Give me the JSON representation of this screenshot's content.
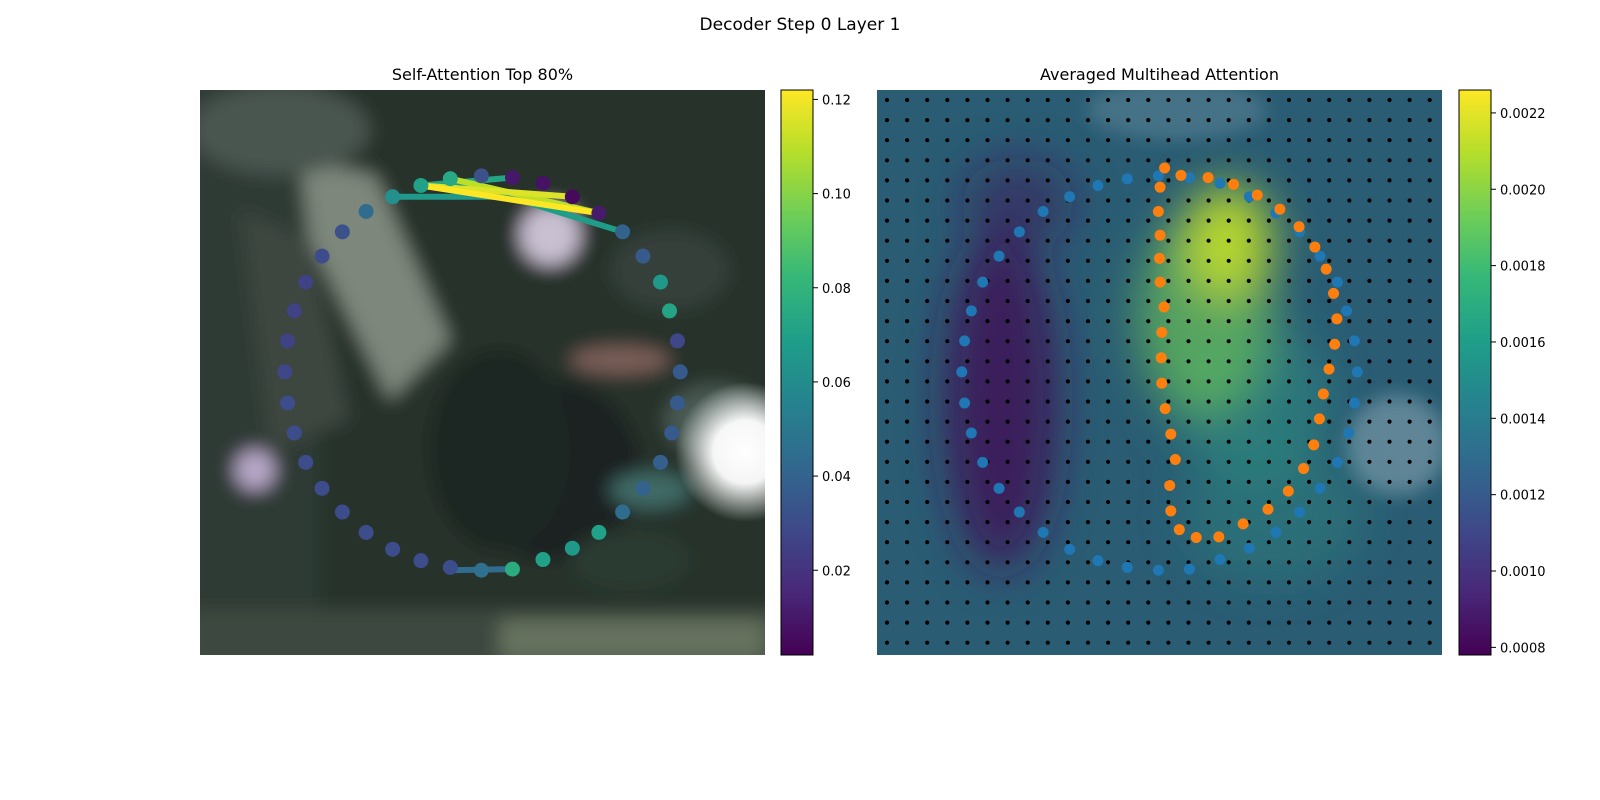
{
  "figure": {
    "suptitle": "Decoder Step 0 Layer 1"
  },
  "colormap": [
    "#440154",
    "#482878",
    "#3e4989",
    "#31688e",
    "#26828e",
    "#1f9e89",
    "#35b779",
    "#6ece58",
    "#b5de2b",
    "#fde725"
  ],
  "chart_data": [
    {
      "type": "scatter",
      "title": "Self-Attention Top 80%",
      "xlim": [
        0,
        1
      ],
      "ylim": [
        0,
        1
      ],
      "grid": false,
      "colorbar": {
        "range": [
          0.002,
          0.122
        ],
        "ticks": [
          0.02,
          0.04,
          0.06,
          0.08,
          0.1,
          0.12
        ],
        "tick_labels": [
          "0.02",
          "0.04",
          "0.06",
          "0.08",
          "0.10",
          "0.12"
        ]
      },
      "attention_points": [
        {
          "x": 0.498,
          "y": 0.848,
          "v": 0.032
        },
        {
          "x": 0.553,
          "y": 0.845,
          "v": 0.01
        },
        {
          "x": 0.607,
          "y": 0.835,
          "v": 0.008
        },
        {
          "x": 0.659,
          "y": 0.811,
          "v": 0.005
        },
        {
          "x": 0.706,
          "y": 0.782,
          "v": 0.011
        },
        {
          "x": 0.748,
          "y": 0.749,
          "v": 0.04
        },
        {
          "x": 0.784,
          "y": 0.706,
          "v": 0.036
        },
        {
          "x": 0.815,
          "y": 0.66,
          "v": 0.066
        },
        {
          "x": 0.831,
          "y": 0.609,
          "v": 0.072
        },
        {
          "x": 0.845,
          "y": 0.556,
          "v": 0.028
        },
        {
          "x": 0.85,
          "y": 0.501,
          "v": 0.036
        },
        {
          "x": 0.845,
          "y": 0.446,
          "v": 0.036
        },
        {
          "x": 0.835,
          "y": 0.393,
          "v": 0.036
        },
        {
          "x": 0.815,
          "y": 0.341,
          "v": 0.038
        },
        {
          "x": 0.784,
          "y": 0.295,
          "v": 0.04
        },
        {
          "x": 0.748,
          "y": 0.253,
          "v": 0.044
        },
        {
          "x": 0.706,
          "y": 0.217,
          "v": 0.07
        },
        {
          "x": 0.659,
          "y": 0.189,
          "v": 0.066
        },
        {
          "x": 0.607,
          "y": 0.169,
          "v": 0.07
        },
        {
          "x": 0.553,
          "y": 0.152,
          "v": 0.076
        },
        {
          "x": 0.498,
          "y": 0.15,
          "v": 0.046
        },
        {
          "x": 0.443,
          "y": 0.155,
          "v": 0.03
        },
        {
          "x": 0.391,
          "y": 0.167,
          "v": 0.03
        },
        {
          "x": 0.341,
          "y": 0.187,
          "v": 0.03
        },
        {
          "x": 0.294,
          "y": 0.217,
          "v": 0.03
        },
        {
          "x": 0.252,
          "y": 0.253,
          "v": 0.03
        },
        {
          "x": 0.216,
          "y": 0.295,
          "v": 0.03
        },
        {
          "x": 0.187,
          "y": 0.341,
          "v": 0.03
        },
        {
          "x": 0.167,
          "y": 0.393,
          "v": 0.03
        },
        {
          "x": 0.155,
          "y": 0.446,
          "v": 0.03
        },
        {
          "x": 0.15,
          "y": 0.501,
          "v": 0.028
        },
        {
          "x": 0.155,
          "y": 0.556,
          "v": 0.026
        },
        {
          "x": 0.167,
          "y": 0.609,
          "v": 0.026
        },
        {
          "x": 0.187,
          "y": 0.66,
          "v": 0.026
        },
        {
          "x": 0.216,
          "y": 0.706,
          "v": 0.03
        },
        {
          "x": 0.252,
          "y": 0.749,
          "v": 0.032
        },
        {
          "x": 0.294,
          "y": 0.785,
          "v": 0.044
        },
        {
          "x": 0.341,
          "y": 0.811,
          "v": 0.062
        },
        {
          "x": 0.391,
          "y": 0.831,
          "v": 0.07
        },
        {
          "x": 0.443,
          "y": 0.843,
          "v": 0.074
        }
      ],
      "attention_edges": [
        {
          "x1": 0.391,
          "y1": 0.831,
          "x2": 0.706,
          "y2": 0.782,
          "v": 0.122
        },
        {
          "x1": 0.391,
          "y1": 0.831,
          "x2": 0.659,
          "y2": 0.811,
          "v": 0.116
        },
        {
          "x1": 0.443,
          "y1": 0.843,
          "x2": 0.706,
          "y2": 0.782,
          "v": 0.11
        },
        {
          "x1": 0.341,
          "y1": 0.811,
          "x2": 0.607,
          "y2": 0.811,
          "v": 0.066
        },
        {
          "x1": 0.443,
          "y1": 0.843,
          "x2": 0.748,
          "y2": 0.749,
          "v": 0.068
        },
        {
          "x1": 0.391,
          "y1": 0.831,
          "x2": 0.553,
          "y2": 0.845,
          "v": 0.072
        },
        {
          "x1": 0.443,
          "y1": 0.15,
          "x2": 0.553,
          "y2": 0.152,
          "v": 0.044
        }
      ]
    },
    {
      "type": "heatmap",
      "title": "Averaged Multihead Attention",
      "xlim": [
        0,
        1
      ],
      "ylim": [
        0,
        1
      ],
      "grid": false,
      "colorbar": {
        "range": [
          0.00078,
          0.00226
        ],
        "ticks": [
          0.0008,
          0.001,
          0.0012,
          0.0014,
          0.0016,
          0.0018,
          0.002,
          0.0022
        ],
        "tick_labels": [
          "0.0008",
          "0.0010",
          "0.0012",
          "0.0014",
          "0.0016",
          "0.0018",
          "0.0020",
          "0.0022"
        ]
      },
      "hotspots": [
        {
          "x": 0.62,
          "y": 0.73,
          "sx": 0.08,
          "sy": 0.1,
          "a": 1.0
        },
        {
          "x": 0.58,
          "y": 0.6,
          "sx": 0.12,
          "sy": 0.18,
          "a": 0.75
        },
        {
          "x": 0.66,
          "y": 0.45,
          "sx": 0.14,
          "sy": 0.14,
          "a": 0.45
        },
        {
          "x": 0.7,
          "y": 0.25,
          "sx": 0.16,
          "sy": 0.12,
          "a": 0.3
        }
      ],
      "coldspots": [
        {
          "x": 0.22,
          "y": 0.45,
          "sx": 0.1,
          "sy": 0.3,
          "a": 0.9
        },
        {
          "x": 0.25,
          "y": 0.8,
          "sx": 0.1,
          "sy": 0.08,
          "a": 0.5
        }
      ],
      "reference_grid_points": {
        "cols": 28,
        "rows": 28
      },
      "series": [
        {
          "color": "#1f77b4",
          "points": [
            {
              "x": 0.498,
              "y": 0.848
            },
            {
              "x": 0.553,
              "y": 0.845
            },
            {
              "x": 0.607,
              "y": 0.835
            },
            {
              "x": 0.659,
              "y": 0.811
            },
            {
              "x": 0.706,
              "y": 0.782
            },
            {
              "x": 0.748,
              "y": 0.749
            },
            {
              "x": 0.784,
              "y": 0.706
            },
            {
              "x": 0.815,
              "y": 0.66
            },
            {
              "x": 0.831,
              "y": 0.609
            },
            {
              "x": 0.845,
              "y": 0.556
            },
            {
              "x": 0.85,
              "y": 0.501
            },
            {
              "x": 0.845,
              "y": 0.446
            },
            {
              "x": 0.835,
              "y": 0.393
            },
            {
              "x": 0.815,
              "y": 0.341
            },
            {
              "x": 0.784,
              "y": 0.295
            },
            {
              "x": 0.748,
              "y": 0.253
            },
            {
              "x": 0.706,
              "y": 0.217
            },
            {
              "x": 0.659,
              "y": 0.189
            },
            {
              "x": 0.607,
              "y": 0.169
            },
            {
              "x": 0.553,
              "y": 0.152
            },
            {
              "x": 0.498,
              "y": 0.15
            },
            {
              "x": 0.443,
              "y": 0.155
            },
            {
              "x": 0.391,
              "y": 0.167
            },
            {
              "x": 0.341,
              "y": 0.187
            },
            {
              "x": 0.294,
              "y": 0.217
            },
            {
              "x": 0.252,
              "y": 0.253
            },
            {
              "x": 0.216,
              "y": 0.295
            },
            {
              "x": 0.187,
              "y": 0.341
            },
            {
              "x": 0.167,
              "y": 0.393
            },
            {
              "x": 0.155,
              "y": 0.446
            },
            {
              "x": 0.15,
              "y": 0.501
            },
            {
              "x": 0.155,
              "y": 0.556
            },
            {
              "x": 0.167,
              "y": 0.609
            },
            {
              "x": 0.187,
              "y": 0.66
            },
            {
              "x": 0.216,
              "y": 0.706
            },
            {
              "x": 0.252,
              "y": 0.749
            },
            {
              "x": 0.294,
              "y": 0.785
            },
            {
              "x": 0.341,
              "y": 0.811
            },
            {
              "x": 0.391,
              "y": 0.831
            },
            {
              "x": 0.443,
              "y": 0.843
            }
          ]
        },
        {
          "color": "#ff7f0e",
          "points": [
            {
              "x": 0.538,
              "y": 0.849
            },
            {
              "x": 0.586,
              "y": 0.845
            },
            {
              "x": 0.631,
              "y": 0.833
            },
            {
              "x": 0.673,
              "y": 0.814
            },
            {
              "x": 0.713,
              "y": 0.789
            },
            {
              "x": 0.747,
              "y": 0.758
            },
            {
              "x": 0.775,
              "y": 0.722
            },
            {
              "x": 0.795,
              "y": 0.683
            },
            {
              "x": 0.808,
              "y": 0.64
            },
            {
              "x": 0.814,
              "y": 0.595
            },
            {
              "x": 0.81,
              "y": 0.55
            },
            {
              "x": 0.8,
              "y": 0.506
            },
            {
              "x": 0.79,
              "y": 0.462
            },
            {
              "x": 0.783,
              "y": 0.418
            },
            {
              "x": 0.773,
              "y": 0.372
            },
            {
              "x": 0.755,
              "y": 0.33
            },
            {
              "x": 0.728,
              "y": 0.29
            },
            {
              "x": 0.692,
              "y": 0.258
            },
            {
              "x": 0.648,
              "y": 0.232
            },
            {
              "x": 0.605,
              "y": 0.209
            },
            {
              "x": 0.565,
              "y": 0.208
            },
            {
              "x": 0.535,
              "y": 0.222
            },
            {
              "x": 0.52,
              "y": 0.255
            },
            {
              "x": 0.518,
              "y": 0.3
            },
            {
              "x": 0.528,
              "y": 0.346
            },
            {
              "x": 0.52,
              "y": 0.391
            },
            {
              "x": 0.51,
              "y": 0.436
            },
            {
              "x": 0.504,
              "y": 0.481
            },
            {
              "x": 0.503,
              "y": 0.526
            },
            {
              "x": 0.504,
              "y": 0.571
            },
            {
              "x": 0.508,
              "y": 0.616
            },
            {
              "x": 0.501,
              "y": 0.66
            },
            {
              "x": 0.5,
              "y": 0.702
            },
            {
              "x": 0.501,
              "y": 0.743
            },
            {
              "x": 0.498,
              "y": 0.785
            },
            {
              "x": 0.501,
              "y": 0.828
            },
            {
              "x": 0.509,
              "y": 0.862
            }
          ]
        }
      ]
    }
  ]
}
